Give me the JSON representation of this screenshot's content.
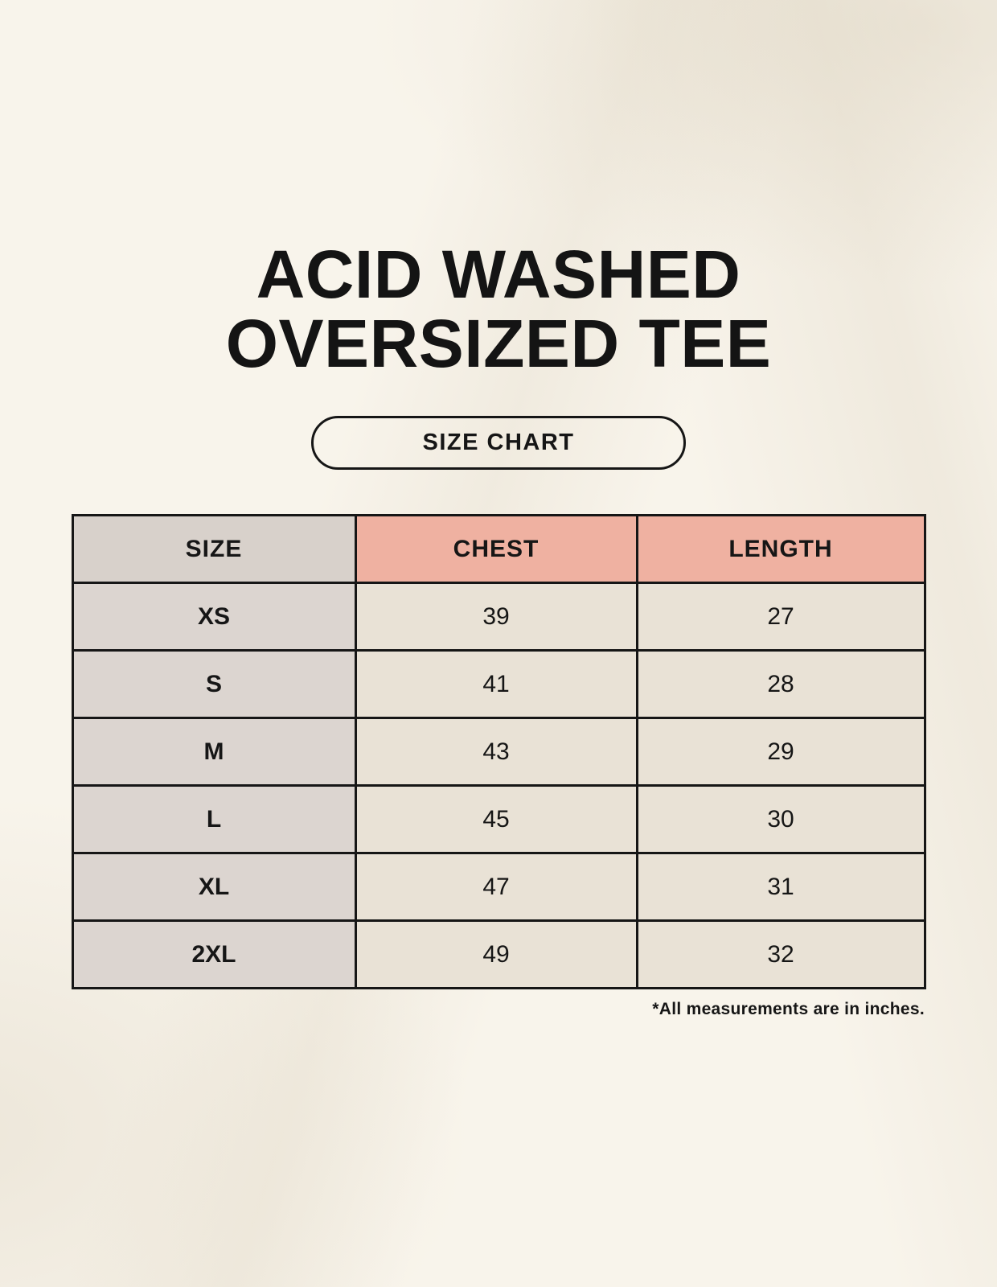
{
  "page": {
    "background_color": "#F8F4EB",
    "text_color": "#161616"
  },
  "header": {
    "title_line1": "ACID WASHED",
    "title_line2": "OVERSIZED TEE"
  },
  "size_chart_button": {
    "label": "SIZE CHART"
  },
  "table": {
    "columns": [
      "SIZE",
      "CHEST",
      "LENGTH"
    ],
    "colors": {
      "size_header_bg": "#D8D1CB",
      "measurement_header_bg": "#EFB1A1",
      "size_column_bg": "#DCD5D0",
      "value_cell_bg": "#E9E2D6",
      "border": "#161616"
    },
    "rows": [
      {
        "size": "XS",
        "chest": "39",
        "length": "27"
      },
      {
        "size": "S",
        "chest": "41",
        "length": "28"
      },
      {
        "size": "M",
        "chest": "43",
        "length": "29"
      },
      {
        "size": "L",
        "chest": "45",
        "length": "30"
      },
      {
        "size": "XL",
        "chest": "47",
        "length": "31"
      },
      {
        "size": "2XL",
        "chest": "49",
        "length": "32"
      }
    ]
  },
  "footnote": "*All measurements are in inches.",
  "chart_data": {
    "type": "table",
    "title": "ACID WASHED OVERSIZED TEE — SIZE CHART",
    "columns": [
      "SIZE",
      "CHEST",
      "LENGTH"
    ],
    "rows": [
      [
        "XS",
        39,
        27
      ],
      [
        "S",
        41,
        28
      ],
      [
        "M",
        43,
        29
      ],
      [
        "L",
        45,
        30
      ],
      [
        "XL",
        47,
        31
      ],
      [
        "2XL",
        49,
        32
      ]
    ],
    "units": "inches"
  }
}
